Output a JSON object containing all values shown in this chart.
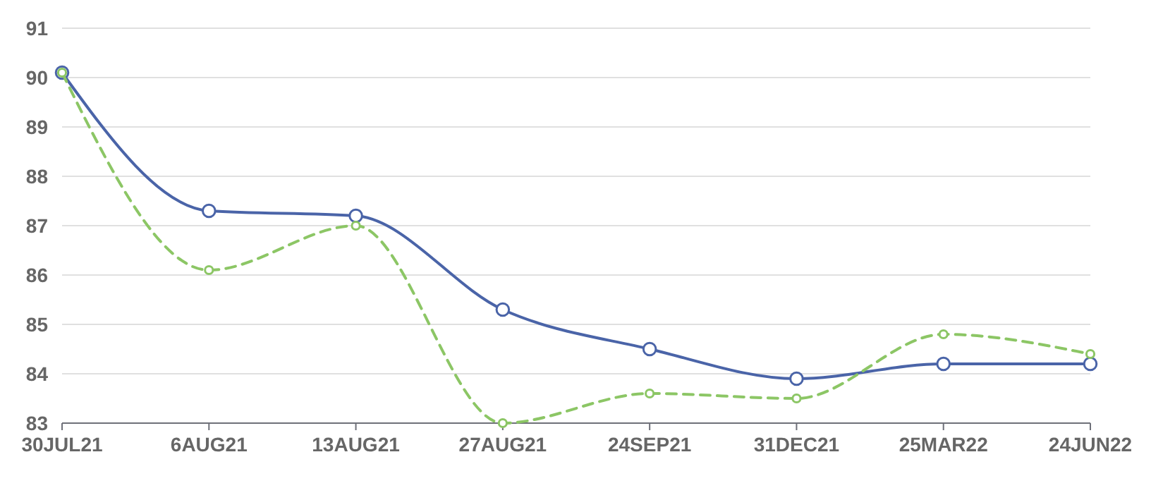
{
  "chart_data": {
    "type": "line",
    "categories": [
      "30JUL21",
      "6AUG21",
      "13AUG21",
      "27AUG21",
      "24SEP21",
      "31DEC21",
      "25MAR22",
      "24JUN22"
    ],
    "series": [
      {
        "color": "#4a64a8",
        "line_style": "solid",
        "values": [
          90.1,
          87.3,
          87.2,
          85.3,
          84.5,
          83.9,
          84.2,
          84.2
        ]
      },
      {
        "color": "#8cc665",
        "line_style": "dashed",
        "values": [
          90.1,
          86.1,
          87.0,
          83.0,
          83.6,
          83.5,
          84.8,
          84.4
        ]
      }
    ],
    "ylim": [
      83,
      91
    ],
    "yticks": [
      83,
      84,
      85,
      86,
      87,
      88,
      89,
      90,
      91
    ],
    "grid": "y",
    "marker": "circle"
  }
}
